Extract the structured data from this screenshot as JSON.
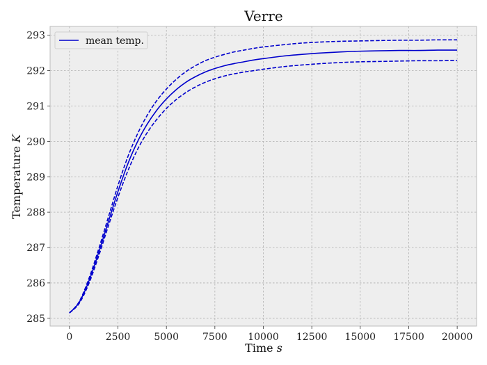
{
  "chart_data": {
    "type": "line",
    "title": "Verre",
    "xlabel": "Time",
    "xlabel_unit": "s",
    "ylabel": "Temperature",
    "ylabel_unit": "K",
    "xlim": [
      -1000,
      21000
    ],
    "ylim": [
      284.78,
      293.25
    ],
    "xticks": [
      0,
      2500,
      5000,
      7500,
      10000,
      12500,
      15000,
      17500,
      20000
    ],
    "yticks": [
      285,
      286,
      287,
      288,
      289,
      290,
      291,
      292,
      293
    ],
    "grid": true,
    "legend_position": "top-left",
    "legend": [
      {
        "label": "mean temp.",
        "color": "#0000cc",
        "dash": "solid"
      }
    ],
    "x": [
      0,
      500,
      1000,
      1500,
      2000,
      2500,
      3000,
      3500,
      4000,
      4500,
      5000,
      5500,
      6000,
      6500,
      7000,
      7500,
      8000,
      8500,
      9000,
      9500,
      10000,
      11000,
      12000,
      13000,
      14000,
      15000,
      16000,
      17000,
      18000,
      19000,
      20000
    ],
    "series": [
      {
        "key": "mean",
        "color": "#0000cc",
        "dash": "solid",
        "values": [
          285.15,
          285.45,
          286.05,
          286.85,
          287.72,
          288.58,
          289.35,
          289.98,
          290.48,
          290.88,
          291.2,
          291.46,
          291.67,
          291.83,
          291.96,
          292.06,
          292.14,
          292.2,
          292.25,
          292.3,
          292.34,
          292.41,
          292.46,
          292.5,
          292.53,
          292.55,
          292.56,
          292.57,
          292.57,
          292.58,
          292.58
        ]
      },
      {
        "key": "upper",
        "color": "#0000cc",
        "dash": "dashed",
        "values": [
          285.15,
          285.47,
          286.12,
          286.95,
          287.85,
          288.75,
          289.55,
          290.2,
          290.73,
          291.15,
          291.48,
          291.75,
          291.97,
          292.14,
          292.28,
          292.38,
          292.46,
          292.53,
          292.58,
          292.63,
          292.67,
          292.73,
          292.78,
          292.81,
          292.83,
          292.84,
          292.85,
          292.86,
          292.86,
          292.87,
          292.87
        ]
      },
      {
        "key": "lower",
        "color": "#0000cc",
        "dash": "dashed",
        "values": [
          285.15,
          285.42,
          285.98,
          286.75,
          287.6,
          288.42,
          289.15,
          289.76,
          290.24,
          290.62,
          290.93,
          291.18,
          291.38,
          291.54,
          291.67,
          291.77,
          291.85,
          291.91,
          291.96,
          292.0,
          292.04,
          292.11,
          292.16,
          292.2,
          292.23,
          292.25,
          292.26,
          292.27,
          292.28,
          292.28,
          292.29
        ]
      }
    ]
  }
}
